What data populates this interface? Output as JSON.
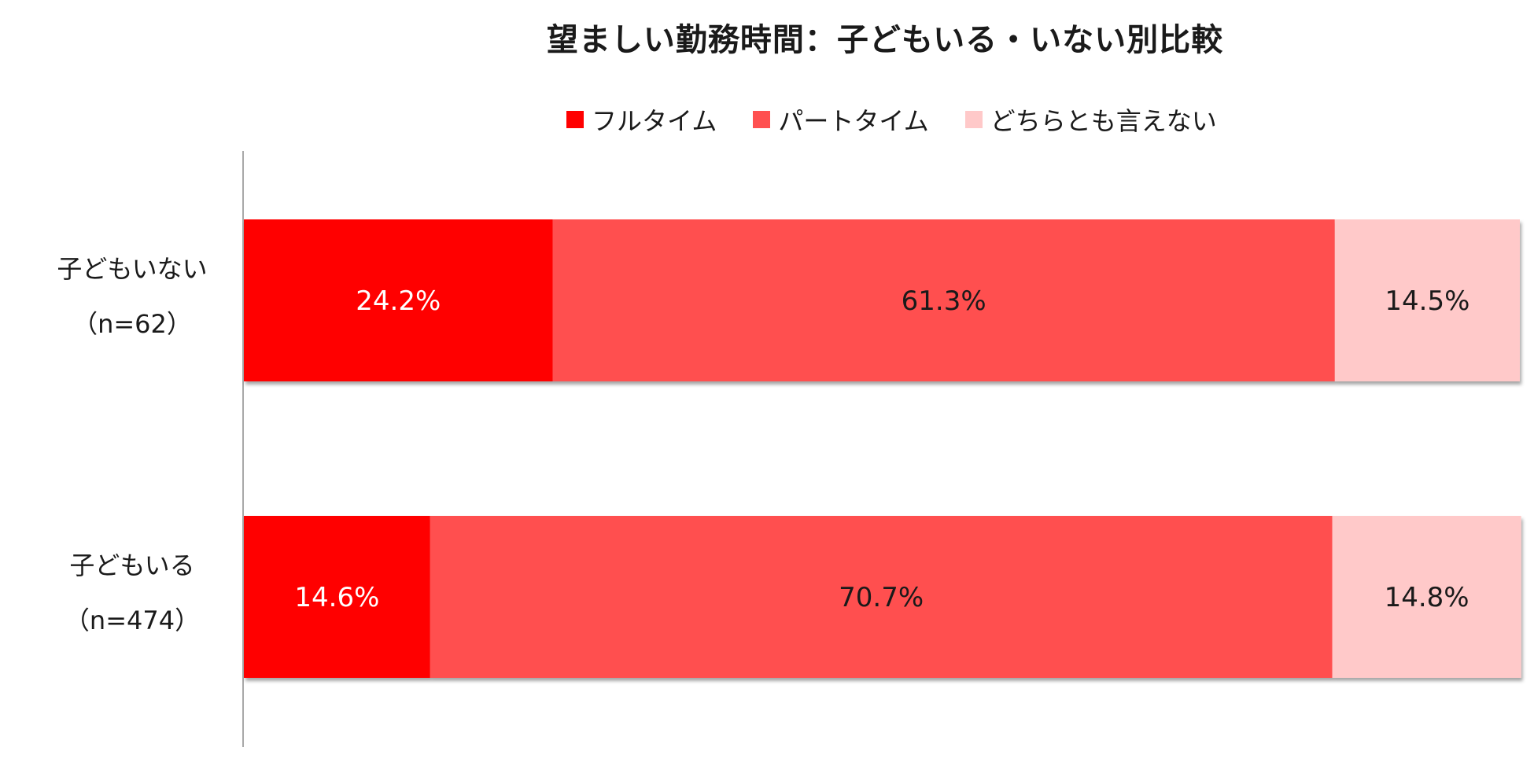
{
  "chart_data": {
    "type": "bar",
    "orientation": "horizontal",
    "stacked": true,
    "title": "望ましい勤務時間：子どもいる・いない別比較",
    "categories": [
      {
        "name": "子どもいない",
        "n": "（n=62）"
      },
      {
        "name": "子どもいる",
        "n": "（n=474）"
      }
    ],
    "series": [
      {
        "name": "フルタイム",
        "color": "#ff0000",
        "label_color": "#ffffff",
        "values": [
          24.2,
          14.6
        ],
        "labels": [
          "24.2%",
          "14.6%"
        ]
      },
      {
        "name": "パートタイム",
        "color": "#ff5050",
        "label_color": "#1a1a1a",
        "values": [
          61.3,
          70.7
        ],
        "labels": [
          "61.3%",
          "70.7%"
        ]
      },
      {
        "name": "どちらとも言えない",
        "color": "#ffc9c9",
        "label_color": "#1a1a1a",
        "values": [
          14.5,
          14.8
        ],
        "labels": [
          "14.5%",
          "14.8%"
        ]
      }
    ],
    "xlim": [
      0,
      100
    ],
    "grid": false,
    "legend_position": "top"
  }
}
